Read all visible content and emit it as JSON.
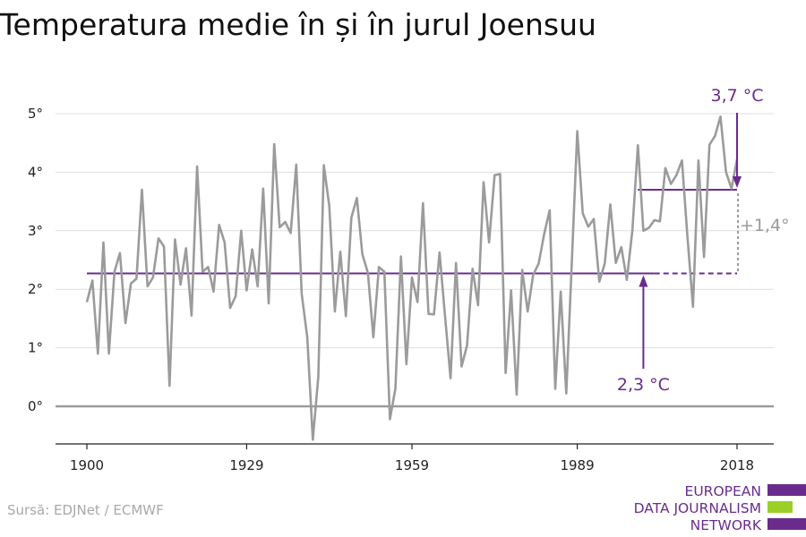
{
  "title": "Temperatura medie în și în jurul Joensuu",
  "source": "Sursă: EDJNet / ECMWF",
  "logo": {
    "lines": [
      "EUROPEAN",
      "DATA JOURNALISM",
      "NETWORK"
    ],
    "colors": [
      "#6a2c8c",
      "#9ccf2a",
      "#6a2c8c"
    ]
  },
  "colors": {
    "line": "#9b9b9b",
    "accent": "#6a2c8c",
    "grid": "#dddddd",
    "axis": "#222222"
  },
  "chart_data": {
    "type": "line",
    "title": "Temperatura medie în și în jurul Joensuu",
    "xlabel": "",
    "ylabel": "",
    "xlim": [
      1900,
      2018
    ],
    "ylim": [
      -0.65,
      5.4
    ],
    "x_ticks": [
      1900,
      1929,
      1959,
      1989,
      2018
    ],
    "x_tick_labels": [
      "1900",
      "1929",
      "1959",
      "1989",
      "2018"
    ],
    "y_ticks": [
      0,
      1,
      2,
      3,
      4,
      5
    ],
    "y_tick_labels": [
      "0°",
      "1°",
      "2°",
      "3°",
      "4°",
      "5°"
    ],
    "grid": true,
    "x": [
      1900,
      1901,
      1902,
      1903,
      1904,
      1905,
      1906,
      1907,
      1908,
      1909,
      1910,
      1911,
      1912,
      1913,
      1914,
      1915,
      1916,
      1917,
      1918,
      1919,
      1920,
      1921,
      1922,
      1923,
      1924,
      1925,
      1926,
      1927,
      1928,
      1929,
      1930,
      1931,
      1932,
      1933,
      1934,
      1935,
      1936,
      1937,
      1938,
      1939,
      1940,
      1941,
      1942,
      1943,
      1944,
      1945,
      1946,
      1947,
      1948,
      1949,
      1950,
      1951,
      1952,
      1953,
      1954,
      1955,
      1956,
      1957,
      1958,
      1959,
      1960,
      1961,
      1962,
      1963,
      1964,
      1965,
      1966,
      1967,
      1968,
      1969,
      1970,
      1971,
      1972,
      1973,
      1974,
      1975,
      1976,
      1977,
      1978,
      1979,
      1980,
      1981,
      1982,
      1983,
      1984,
      1985,
      1986,
      1987,
      1988,
      1989,
      1990,
      1991,
      1992,
      1993,
      1994,
      1995,
      1996,
      1997,
      1998,
      1999,
      2000,
      2001,
      2002,
      2003,
      2004,
      2005,
      2006,
      2007,
      2008,
      2009,
      2010,
      2011,
      2012,
      2013,
      2014,
      2015,
      2016,
      2017,
      2018
    ],
    "series": [
      {
        "values": [
          1.78,
          2.15,
          0.9,
          2.8,
          0.9,
          2.3,
          2.62,
          1.42,
          2.1,
          2.18,
          3.7,
          2.05,
          2.2,
          2.87,
          2.73,
          0.35,
          2.85,
          2.08,
          2.7,
          1.55,
          4.1,
          2.3,
          2.38,
          1.96,
          3.1,
          2.8,
          1.68,
          1.88,
          3.0,
          1.98,
          2.68,
          2.05,
          3.72,
          1.76,
          4.48,
          3.06,
          3.15,
          2.96,
          4.13,
          1.92,
          1.18,
          -0.57,
          0.5,
          4.12,
          3.42,
          1.62,
          2.64,
          1.54,
          3.22,
          3.56,
          2.6,
          2.28,
          1.18,
          2.38,
          2.3,
          -0.22,
          0.3,
          2.56,
          0.72,
          2.2,
          1.78,
          3.47,
          1.58,
          1.57,
          2.63,
          1.55,
          0.48,
          2.45,
          0.68,
          1.04,
          2.35,
          1.73,
          3.83,
          2.8,
          3.95,
          3.97,
          0.57,
          1.98,
          0.2,
          2.33,
          1.62,
          2.25,
          2.44,
          2.95,
          3.35,
          0.3,
          1.96,
          0.22,
          2.42,
          4.7,
          3.3,
          3.07,
          3.2,
          2.13,
          2.44,
          3.45,
          2.45,
          2.72,
          2.16,
          3.0,
          4.46,
          3.0,
          3.05,
          3.18,
          3.16,
          4.07,
          3.8,
          3.95,
          4.2,
          2.9,
          1.7,
          4.2,
          2.55,
          4.47,
          4.62,
          4.95,
          4.0,
          3.72,
          4.22
        ]
      }
    ],
    "annotations": {
      "baseline_value": 2.27,
      "recent_value": 3.7,
      "baseline_label": "2,3 °C",
      "recent_label": "3,7 °C",
      "diff_label": "+1,4°"
    }
  }
}
